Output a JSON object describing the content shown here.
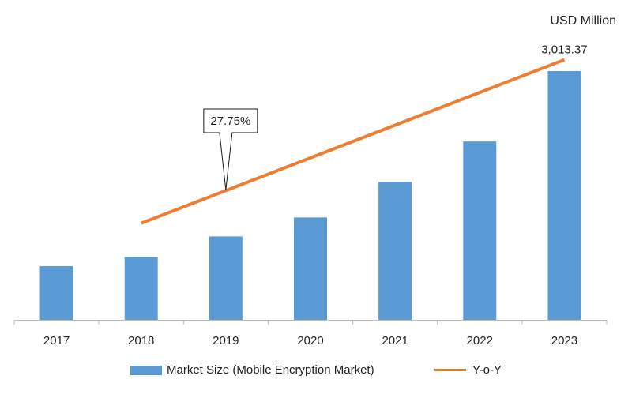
{
  "chart_data": {
    "type": "bar",
    "title": "",
    "unit_label": "USD Million",
    "categories": [
      "2017",
      "2018",
      "2019",
      "2020",
      "2021",
      "2022",
      "2023"
    ],
    "series": [
      {
        "name": "Market Size (Mobile Encryption Market)",
        "type": "bar",
        "color": "#5B9BD5",
        "values": [
          650,
          760,
          1010,
          1240,
          1670,
          2160,
          3013.37
        ]
      }
    ],
    "trend": {
      "name": "Y-o-Y",
      "color": "#ED7D31",
      "from_category": "2018",
      "to_category": "2023",
      "start_value": 1170,
      "end_value": 3150
    },
    "annotations": {
      "cagr_label": "27.75%",
      "cagr_category": "2019",
      "last_value_label": "3,013.37"
    },
    "xlabel": "",
    "ylabel": "",
    "ylim": [
      0,
      3300
    ],
    "grid": false,
    "legend_position": "bottom"
  }
}
